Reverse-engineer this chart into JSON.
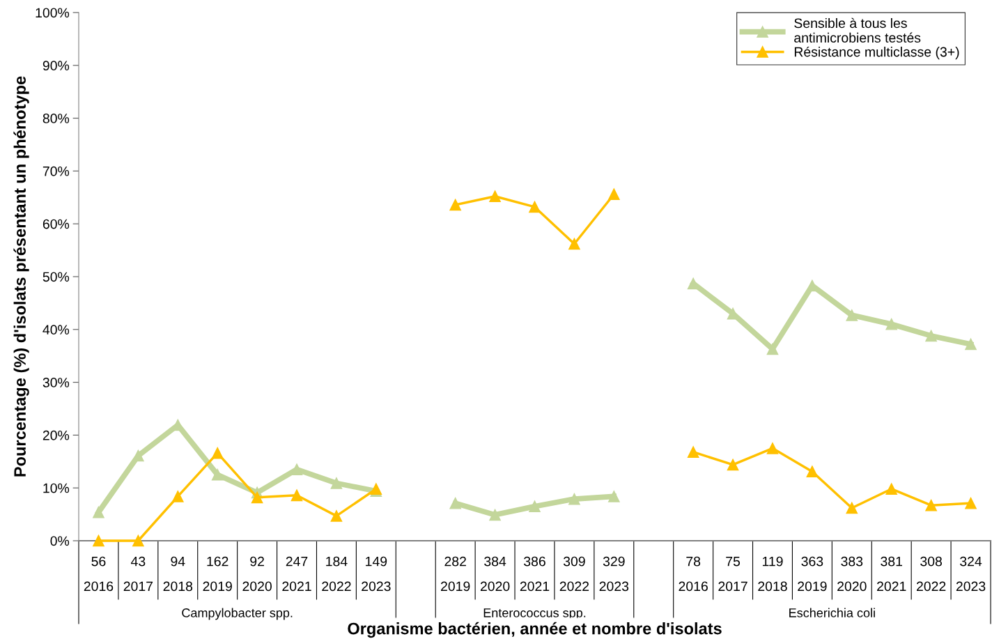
{
  "chart_data": {
    "type": "line",
    "xlabel": "Organisme bactérien, année et nombre d'isolats",
    "ylabel": "Pourcentage (%) d'isolats présentant un phénotype",
    "categories": [
      "56\n2016",
      "43\n2017",
      "94\n2018",
      "162\n2019",
      "92\n2020",
      "247\n2021",
      "184\n2022",
      "149\n2023",
      null,
      "282\n2019",
      "384\n2020",
      "386\n2021",
      "309\n2022",
      "329\n2023",
      null,
      "78\n2016",
      "75\n2017",
      "119\n2018",
      "363\n2019",
      "383\n2020",
      "381\n2021",
      "308\n2022",
      "324\n2023"
    ],
    "series": [
      {
        "name": "Sensible à tous les\nantimicrobiens testés",
        "color": "#c3d69b",
        "values": [
          5.4,
          16.1,
          21.9,
          12.5,
          9.1,
          13.5,
          10.9,
          9.4,
          null,
          7.1,
          4.9,
          6.5,
          7.9,
          8.4,
          null,
          48.7,
          43.0,
          36.3,
          48.3,
          42.7,
          41.0,
          38.8,
          37.2
        ]
      },
      {
        "name": "Résistance multiclasse (3+)",
        "color": "#ffc000",
        "values": [
          0,
          0,
          8.4,
          16.6,
          8.2,
          8.6,
          4.7,
          9.8,
          null,
          63.6,
          65.2,
          63.2,
          56.2,
          65.6,
          null,
          16.8,
          14.4,
          17.5,
          13.1,
          6.2,
          9.8,
          6.7,
          7.1
        ]
      }
    ],
    "annotations": [
      "Campylobacter spp.",
      "Enterococcus spp.",
      "Escherichia coli"
    ],
    "ylim": [
      0,
      100
    ],
    "yticks": [
      {
        "value": 0,
        "label": "0%"
      },
      {
        "value": 10,
        "label": "10%"
      },
      {
        "value": 20,
        "label": "20%"
      },
      {
        "value": 30,
        "label": "30%"
      },
      {
        "value": 40,
        "label": "40%"
      },
      {
        "value": 50,
        "label": "50%"
      },
      {
        "value": 60,
        "label": "60%"
      },
      {
        "value": 70,
        "label": "70%"
      },
      {
        "value": 80,
        "label": "80%"
      },
      {
        "value": 90,
        "label": "90%"
      },
      {
        "value": 100,
        "label": "100%"
      }
    ],
    "marker": "triangle",
    "line_style": "solid",
    "grid": false,
    "legend": "top right"
  }
}
